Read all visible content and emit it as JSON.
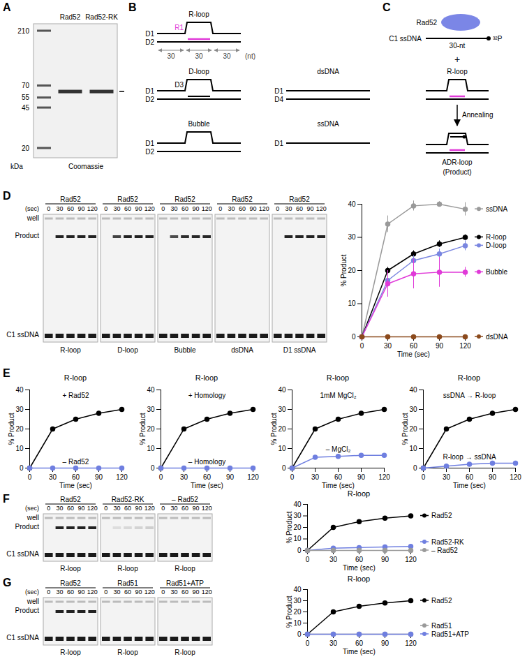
{
  "panels": {
    "A": {
      "letter": "A",
      "lanes": [
        "Rad52",
        "Rad52-RK"
      ],
      "markers": [
        210,
        70,
        55,
        45,
        20
      ],
      "unit": "kDa",
      "stain": "Coomassie"
    },
    "B": {
      "letter": "B",
      "structures": [
        {
          "name": "R-loop",
          "strands": [
            "D1",
            "D2"
          ],
          "rna": "R1",
          "segments": [
            30,
            30,
            30
          ],
          "unit": "(nt)"
        },
        {
          "name": "D-loop",
          "strands": [
            "D1",
            "D2"
          ],
          "invading": "D3"
        },
        {
          "name": "dsDNA",
          "strands": [
            "D1",
            "D4"
          ]
        },
        {
          "name": "Bubble",
          "strands": [
            "D1",
            "D2"
          ]
        },
        {
          "name": "ssDNA",
          "strands": [
            "D1"
          ]
        }
      ]
    },
    "C": {
      "letter": "C",
      "protein": "Rad52",
      "probe": "C1 ssDNA",
      "probe_length": "30-nt",
      "label": "³²P",
      "plus": "+",
      "substrate": "R-loop",
      "step": "Annealing",
      "product": "ADR-loop",
      "product_note": "(Product)"
    },
    "D": {
      "letter": "D",
      "time_unit": "(sec)",
      "rows": [
        "well",
        "Product",
        "C1 ssDNA"
      ],
      "gels": [
        {
          "protein": "Rad52",
          "substrate": "R-loop"
        },
        {
          "protein": "Rad52",
          "substrate": "D-loop"
        },
        {
          "protein": "Rad52",
          "substrate": "Bubble"
        },
        {
          "protein": "Rad52",
          "substrate": "dsDNA"
        },
        {
          "protein": "Rad52",
          "substrate": "D1 ssDNA"
        }
      ]
    },
    "E": {
      "letter": "E"
    },
    "F": {
      "letter": "F",
      "time_unit": "(sec)",
      "rows": [
        "well",
        "Product",
        "C1 ssDNA"
      ],
      "gels": [
        {
          "protein": "Rad52",
          "substrate": "R-loop"
        },
        {
          "protein": "Rad52-RK",
          "substrate": "R-loop"
        },
        {
          "protein": "– Rad52",
          "substrate": "R-loop"
        }
      ]
    },
    "G": {
      "letter": "G",
      "time_unit": "(sec)",
      "rows": [
        "well",
        "Product",
        "C1 ssDNA"
      ],
      "gels": [
        {
          "protein": "Rad52",
          "substrate": "R-loop"
        },
        {
          "protein": "Rad51",
          "substrate": "R-loop"
        },
        {
          "protein": "Rad51+ATP",
          "substrate": "R-loop"
        }
      ]
    }
  },
  "chart_data": [
    {
      "type": "line",
      "x": [
        0,
        30,
        60,
        90,
        120
      ],
      "xlim": [
        0,
        120
      ],
      "xticks": [
        0,
        30,
        60,
        90,
        120
      ],
      "ylim": [
        0,
        40
      ],
      "yticks": [
        0,
        10,
        20,
        30,
        40
      ],
      "xlabel": "Time (sec)",
      "ylabel": "% Product",
      "marker": "circle",
      "legend": "right",
      "series": [
        {
          "name": "ssDNA",
          "color": "#9a9a9a",
          "values": [
            0,
            34,
            39.5,
            40,
            38.5
          ],
          "errors": [
            0,
            2.5,
            1.5,
            0.8,
            2
          ]
        },
        {
          "name": "R-loop",
          "color": "#000000",
          "values": [
            0,
            20,
            25,
            28,
            30
          ],
          "errors": [
            0,
            1,
            1,
            1,
            0.8
          ]
        },
        {
          "name": "D-loop",
          "color": "#7a86e0",
          "values": [
            0,
            17,
            23,
            25,
            27.5
          ],
          "errors": [
            0,
            2,
            1.5,
            1.5,
            1.5
          ]
        },
        {
          "name": "Bubble",
          "color": "#e03ad8",
          "values": [
            0,
            16,
            19,
            19.5,
            19.5
          ],
          "errors": [
            0,
            4,
            4.5,
            4.5,
            1.5
          ]
        },
        {
          "name": "dsDNA",
          "color": "#8b4a1c",
          "values": [
            0,
            0,
            0,
            0,
            0
          ]
        }
      ]
    },
    {
      "type": "line",
      "title": "R-loop",
      "x": [
        0,
        30,
        60,
        90,
        120
      ],
      "xlim": [
        0,
        120
      ],
      "xticks": [
        0,
        30,
        60,
        90,
        120
      ],
      "ylim": [
        0,
        40
      ],
      "yticks": [
        0,
        10,
        20,
        30,
        40
      ],
      "xlabel": "Time (sec)",
      "ylabel": "% Product",
      "marker": "circle",
      "series": [
        {
          "name": "+ Rad52",
          "color": "#000000",
          "values": [
            0,
            20,
            25,
            28,
            30
          ],
          "errors": [
            0,
            1,
            1,
            1,
            0.5
          ]
        },
        {
          "name": "– Rad52",
          "color": "#6f7fe0",
          "values": [
            0,
            0,
            0,
            0,
            0
          ]
        }
      ]
    },
    {
      "type": "line",
      "title": "R-loop",
      "x": [
        0,
        30,
        60,
        90,
        120
      ],
      "xlim": [
        0,
        120
      ],
      "xticks": [
        0,
        30,
        60,
        90,
        120
      ],
      "ylim": [
        0,
        40
      ],
      "yticks": [
        0,
        10,
        20,
        30,
        40
      ],
      "xlabel": "Time (sec)",
      "ylabel": "% Product",
      "marker": "circle",
      "series": [
        {
          "name": "+ Homology",
          "color": "#000000",
          "values": [
            0,
            20,
            25,
            28,
            30
          ],
          "errors": [
            0,
            1,
            1,
            1,
            0.5
          ]
        },
        {
          "name": "– Homology",
          "color": "#6f7fe0",
          "values": [
            0,
            0,
            0,
            0,
            0
          ]
        }
      ]
    },
    {
      "type": "line",
      "title": "R-loop",
      "x": [
        0,
        30,
        60,
        90,
        120
      ],
      "xlim": [
        0,
        120
      ],
      "xticks": [
        0,
        30,
        60,
        90,
        120
      ],
      "ylim": [
        0,
        40
      ],
      "yticks": [
        0,
        10,
        20,
        30,
        40
      ],
      "xlabel": "Time (sec)",
      "ylabel": "% Product",
      "marker": "circle",
      "series": [
        {
          "name": "1mM MgCl₂",
          "color": "#000000",
          "values": [
            0,
            20,
            25,
            28,
            30
          ],
          "errors": [
            0,
            1,
            1,
            1,
            0.5
          ]
        },
        {
          "name": "– MgCl₂",
          "color": "#6f7fe0",
          "values": [
            0,
            5.5,
            6,
            6.5,
            6.5
          ]
        }
      ]
    },
    {
      "type": "line",
      "title": "R-loop",
      "x": [
        0,
        30,
        60,
        90,
        120
      ],
      "xlim": [
        0,
        120
      ],
      "xticks": [
        0,
        30,
        60,
        90,
        120
      ],
      "ylim": [
        0,
        40
      ],
      "yticks": [
        0,
        10,
        20,
        30,
        40
      ],
      "xlabel": "Time (sec)",
      "ylabel": "% Product",
      "marker": "circle",
      "series": [
        {
          "name": "ssDNA → R-loop",
          "color": "#000000",
          "values": [
            0,
            20,
            25,
            28,
            30
          ],
          "errors": [
            0,
            1,
            1,
            1,
            0.5
          ]
        },
        {
          "name": "R-loop → ssDNA",
          "color": "#6f7fe0",
          "values": [
            0,
            1,
            2,
            2.5,
            2.5
          ]
        }
      ]
    },
    {
      "type": "line",
      "title": "R-loop",
      "x": [
        0,
        30,
        60,
        90,
        120
      ],
      "xlim": [
        0,
        120
      ],
      "xticks": [
        0,
        30,
        60,
        90,
        120
      ],
      "ylim": [
        0,
        40
      ],
      "yticks": [
        0,
        10,
        20,
        30,
        40
      ],
      "xlabel": "Time (sec)",
      "ylabel": "% Product",
      "marker": "circle",
      "legend": "right",
      "series": [
        {
          "name": "Rad52",
          "color": "#000000",
          "values": [
            0,
            20,
            25,
            28,
            30
          ],
          "errors": [
            0,
            1,
            1,
            1,
            0.5
          ]
        },
        {
          "name": "Rad52-RK",
          "color": "#6f7fe0",
          "values": [
            0,
            2,
            2.5,
            3,
            3.5
          ]
        },
        {
          "name": "– Rad52",
          "color": "#9a9a9a",
          "values": [
            0,
            0,
            0,
            0,
            0
          ]
        }
      ]
    },
    {
      "type": "line",
      "title": "R-loop",
      "x": [
        0,
        30,
        60,
        90,
        120
      ],
      "xlim": [
        0,
        120
      ],
      "xticks": [
        0,
        30,
        60,
        90,
        120
      ],
      "ylim": [
        0,
        40
      ],
      "yticks": [
        0,
        10,
        20,
        30,
        40
      ],
      "xlabel": "Time (sec)",
      "ylabel": "% Product",
      "marker": "circle",
      "legend": "right",
      "series": [
        {
          "name": "Rad52",
          "color": "#000000",
          "values": [
            0,
            20,
            25,
            28,
            30
          ],
          "errors": [
            0,
            1,
            1,
            1,
            0.5
          ]
        },
        {
          "name": "Rad51",
          "color": "#9a9a9a",
          "values": [
            0,
            0,
            0,
            0,
            0
          ]
        },
        {
          "name": "Rad51+ATP",
          "color": "#6f7fe0",
          "values": [
            0,
            0,
            0,
            0,
            0
          ]
        }
      ]
    }
  ]
}
